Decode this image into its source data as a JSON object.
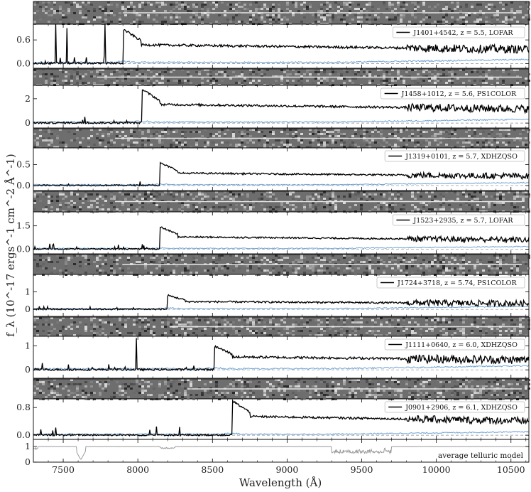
{
  "chart_data": {
    "type": "line",
    "xlabel": "Wavelength (Å)",
    "ylabel": "f_λ (10^-17 ergs^-1 cm^-2 Å^-1)",
    "xlim": [
      7300,
      10620
    ],
    "xticks": [
      7500,
      8000,
      8500,
      9000,
      9500,
      10000,
      10500
    ],
    "series_styles": {
      "flux": "#000000",
      "error": "#6fa3d6",
      "telluric": "#9a9a9a"
    },
    "spectra": [
      {
        "legend": "J1401+4542, z = 5.5, LOFAR",
        "z": 5.5,
        "ylim": [
          -0.12,
          1.0
        ],
        "yticks": [
          0.0,
          0.6
        ],
        "ytick_labels": [
          "0.0",
          "0.6"
        ],
        "flux_level": 0.48,
        "noise": 0.06,
        "spikes": [
          [
            7450,
            1.0
          ],
          [
            7525,
            0.9
          ],
          [
            7780,
            1.0
          ]
        ]
      },
      {
        "legend": "J1458+1012, z = 5.6, PS1COLOR",
        "z": 5.6,
        "ylim": [
          -0.4,
          3.1
        ],
        "yticks": [
          0,
          2
        ],
        "ytick_labels": [
          "0",
          "2"
        ],
        "flux_level": 1.55,
        "noise": 0.18,
        "spikes": []
      },
      {
        "legend": "J1319+0101, z = 5.7, XDHZQSO",
        "z": 5.7,
        "ylim": [
          -0.12,
          0.9
        ],
        "yticks": [
          0.0,
          0.5
        ],
        "ytick_labels": [
          "0.0",
          "0.5"
        ],
        "flux_level": 0.3,
        "noise": 0.04,
        "spikes": []
      },
      {
        "legend": "J1523+2935, z = 5.7, LOFAR",
        "z": 5.7,
        "ylim": [
          -0.3,
          2.4
        ],
        "yticks": [
          0.0,
          1.5
        ],
        "ytick_labels": [
          "0.0",
          "1.5"
        ],
        "flux_level": 0.8,
        "noise": 0.1,
        "spikes": []
      },
      {
        "legend": "J1724+3718, z = 5.74, PS1COLOR",
        "z": 5.74,
        "ylim": [
          -0.4,
          2.0
        ],
        "yticks": [
          0,
          1
        ],
        "ytick_labels": [
          "0",
          "1"
        ],
        "flux_level": 0.45,
        "noise": 0.1,
        "spikes": []
      },
      {
        "legend": "J1111+0640, z = 6.0, XDHZQSO",
        "z": 6.0,
        "ylim": [
          -0.35,
          1.4
        ],
        "yticks": [
          0,
          1
        ],
        "ytick_labels": [
          "0",
          "1"
        ],
        "flux_level": 0.55,
        "noise": 0.1,
        "spikes": [
          [
            7990,
            0.95
          ]
        ]
      },
      {
        "legend": "J0901+2906, z = 6.1, XDHZQSO",
        "z": 6.1,
        "ylim": [
          -0.12,
          1.05
        ],
        "yticks": [
          0.0,
          0.8
        ],
        "ytick_labels": [
          "0.0",
          "0.8"
        ],
        "flux_level": 0.55,
        "noise": 0.06,
        "spikes": []
      }
    ],
    "telluric": {
      "legend": "average telluric model",
      "ylim": [
        0.0,
        1.45
      ],
      "yticks": [
        0,
        1
      ],
      "ytick_labels": [
        "0",
        "1"
      ],
      "absorption_bands": [
        [
          7600,
          7640,
          0.15
        ],
        [
          7170,
          7330,
          0.8
        ],
        [
          9300,
          9650,
          0.6
        ],
        [
          8150,
          8250,
          0.85
        ]
      ]
    }
  }
}
